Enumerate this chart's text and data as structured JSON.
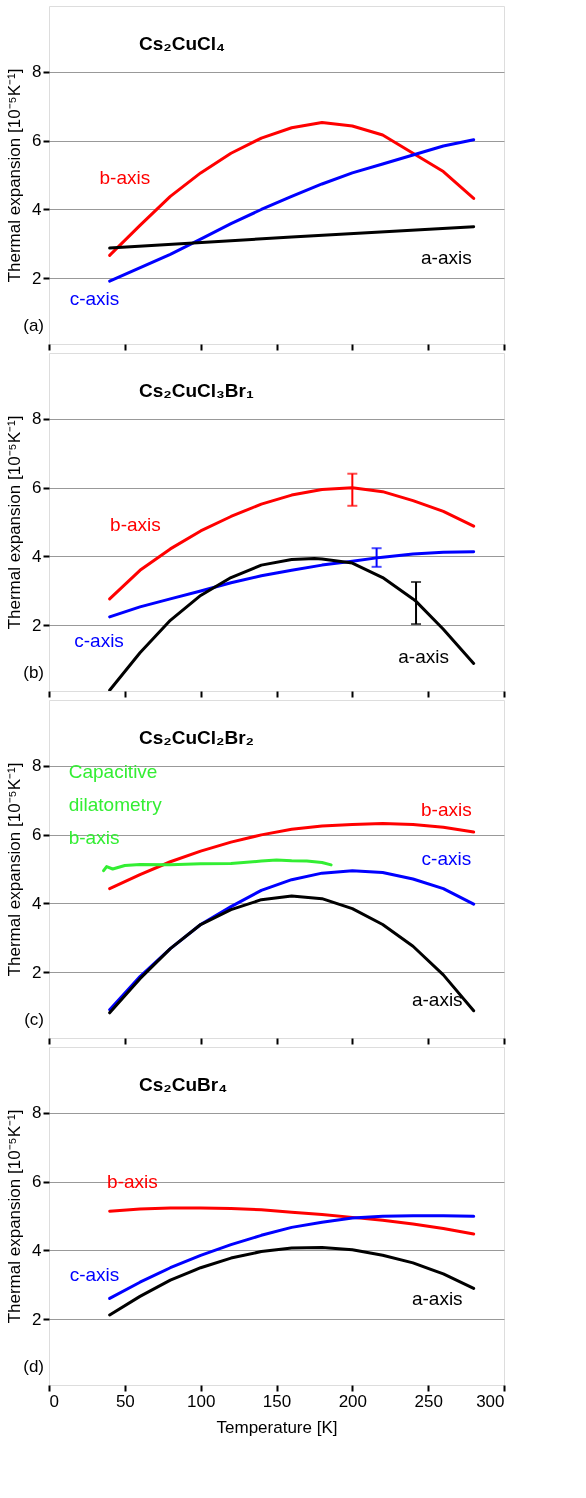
{
  "chart_data": [
    {
      "type": "line",
      "title": "Cs₂CuCl₄",
      "ylabel": "Thermal expansion [10⁻⁵K⁻¹]",
      "xlim": [
        0,
        300
      ],
      "xticks": [
        0,
        50,
        100,
        150,
        200,
        250,
        300
      ],
      "ylim": [
        0.1,
        9.9
      ],
      "yticks": [
        2,
        4,
        6,
        8
      ],
      "grid": "y",
      "tick_labels": "y",
      "line_style": "solid",
      "annotations": [
        "(a)"
      ],
      "series": [
        {
          "name": "b-axis",
          "color": "#ff0000",
          "x": [
            40,
            60,
            80,
            100,
            120,
            140,
            160,
            180,
            200,
            220,
            240,
            260,
            280
          ],
          "values": [
            2.67,
            3.54,
            4.38,
            5.06,
            5.63,
            6.07,
            6.37,
            6.52,
            6.42,
            6.16,
            5.63,
            5.1,
            4.32
          ]
        },
        {
          "name": "c-axis",
          "color": "#0000ff",
          "x": [
            40,
            80,
            100,
            120,
            140,
            160,
            180,
            200,
            220,
            240,
            260,
            280
          ],
          "values": [
            1.92,
            2.7,
            3.14,
            3.59,
            4.0,
            4.38,
            4.74,
            5.06,
            5.32,
            5.58,
            5.84,
            6.02
          ]
        },
        {
          "name": "a-axis",
          "color": "#000000",
          "x": [
            40,
            160,
            280
          ],
          "values": [
            2.88,
            3.2,
            3.5
          ]
        }
      ]
    },
    {
      "type": "line",
      "title": "Cs₂CuCl₃Br₁",
      "ylabel": "Thermal expansion [10⁻⁵K⁻¹]",
      "xlim": [
        0,
        300
      ],
      "xticks": [
        0,
        50,
        100,
        150,
        200,
        250,
        300
      ],
      "ylim": [
        0.1,
        9.9
      ],
      "yticks": [
        2,
        4,
        6,
        8
      ],
      "grid": "y",
      "tick_labels": "y",
      "line_style": "solid",
      "annotations": [
        "(b)"
      ],
      "series": [
        {
          "name": "b-axis",
          "color": "#ff0000",
          "x": [
            40,
            60,
            80,
            100,
            120,
            140,
            160,
            180,
            200,
            220,
            240,
            260,
            280
          ],
          "values": [
            2.77,
            3.6,
            4.22,
            4.74,
            5.16,
            5.52,
            5.78,
            5.94,
            5.99,
            5.88,
            5.62,
            5.31,
            4.88
          ],
          "errors": [
            null,
            null,
            null,
            null,
            null,
            null,
            null,
            null,
            [
              5.47,
              6.4
            ],
            null,
            null,
            null,
            null
          ]
        },
        {
          "name": "c-axis",
          "color": "#0000ff",
          "x": [
            40,
            60,
            80,
            100,
            120,
            140,
            160,
            180,
            200,
            216,
            220,
            240,
            260,
            280
          ],
          "values": [
            2.25,
            2.54,
            2.77,
            3.0,
            3.24,
            3.44,
            3.6,
            3.75,
            3.86,
            3.96,
            3.98,
            4.07,
            4.12,
            4.14
          ],
          "errors": [
            null,
            null,
            null,
            null,
            null,
            null,
            null,
            null,
            null,
            [
              3.7,
              4.24
            ],
            null,
            null,
            null,
            null
          ]
        },
        {
          "name": "a-axis",
          "color": "#000000",
          "x": [
            40,
            60,
            80,
            100,
            120,
            140,
            160,
            175,
            180,
            200,
            220,
            240,
            242,
            260,
            280
          ],
          "values": [
            0.12,
            1.21,
            2.15,
            2.87,
            3.39,
            3.75,
            3.91,
            3.94,
            3.93,
            3.81,
            3.39,
            2.77,
            2.7,
            1.89,
            0.9
          ],
          "errors": [
            null,
            null,
            null,
            null,
            null,
            null,
            null,
            null,
            null,
            null,
            null,
            null,
            [
              2.04,
              3.26
            ],
            null,
            null
          ]
        }
      ]
    },
    {
      "type": "line",
      "title": "Cs₂CuCl₂Br₂",
      "ylabel": "Thermal expansion [10⁻⁵K⁻¹]",
      "xlim": [
        0,
        300
      ],
      "xticks": [
        0,
        50,
        100,
        150,
        200,
        250,
        300
      ],
      "ylim": [
        0.1,
        9.9
      ],
      "yticks": [
        2,
        4,
        6,
        8
      ],
      "grid": "y",
      "tick_labels": "y",
      "line_style": "solid",
      "annotations": [
        "(c)"
      ],
      "series": [
        {
          "name": "b-axis",
          "color": "#ff0000",
          "x": [
            40,
            60,
            80,
            100,
            120,
            140,
            160,
            180,
            200,
            220,
            240,
            260,
            280
          ],
          "values": [
            4.43,
            4.84,
            5.21,
            5.52,
            5.78,
            5.99,
            6.15,
            6.25,
            6.29,
            6.32,
            6.29,
            6.21,
            6.07
          ]
        },
        {
          "name": "c-axis",
          "color": "#0000ff",
          "x": [
            40,
            60,
            80,
            100,
            120,
            140,
            160,
            180,
            200,
            220,
            240,
            260,
            280
          ],
          "values": [
            0.92,
            1.88,
            2.69,
            3.39,
            3.91,
            4.38,
            4.69,
            4.88,
            4.95,
            4.9,
            4.71,
            4.43,
            3.98
          ]
        },
        {
          "name": "a-axis",
          "color": "#000000",
          "x": [
            40,
            60,
            80,
            100,
            120,
            140,
            160,
            180,
            200,
            220,
            240,
            260,
            280
          ],
          "values": [
            0.83,
            1.82,
            2.69,
            3.39,
            3.82,
            4.11,
            4.22,
            4.14,
            3.85,
            3.39,
            2.76,
            1.93,
            0.89
          ]
        },
        {
          "name": "Capacitive dilatometry b-axis",
          "color": "#33ee33",
          "x": [
            36,
            38,
            42,
            50,
            60,
            80,
            100,
            120,
            140,
            150,
            160,
            170,
            180,
            186
          ],
          "values": [
            4.95,
            5.07,
            5.0,
            5.1,
            5.13,
            5.12,
            5.15,
            5.16,
            5.23,
            5.26,
            5.24,
            5.23,
            5.19,
            5.12
          ]
        }
      ]
    },
    {
      "type": "line",
      "title": "Cs₂CuBr₄",
      "xlabel": "Temperature [K]",
      "ylabel": "Thermal expansion [10⁻⁵K⁻¹]",
      "xlim": [
        0,
        300
      ],
      "xticks": [
        0,
        50,
        100,
        150,
        200,
        250,
        300
      ],
      "ylim": [
        0.1,
        9.9
      ],
      "yticks": [
        2,
        4,
        6,
        8
      ],
      "grid": "y",
      "line_style": "solid",
      "annotations": [
        "(d)"
      ],
      "series": [
        {
          "name": "b-axis",
          "color": "#ff0000",
          "x": [
            40,
            60,
            80,
            100,
            120,
            140,
            160,
            180,
            200,
            220,
            240,
            260,
            280
          ],
          "values": [
            5.14,
            5.2,
            5.23,
            5.23,
            5.22,
            5.18,
            5.11,
            5.04,
            4.96,
            4.88,
            4.77,
            4.64,
            4.48
          ]
        },
        {
          "name": "c-axis",
          "color": "#0000ff",
          "x": [
            40,
            60,
            80,
            100,
            120,
            140,
            160,
            180,
            200,
            220,
            240,
            260,
            280
          ],
          "values": [
            2.61,
            3.08,
            3.5,
            3.86,
            4.17,
            4.44,
            4.67,
            4.82,
            4.94,
            4.99,
            5.01,
            5.01,
            4.99
          ]
        },
        {
          "name": "a-axis",
          "color": "#000000",
          "x": [
            40,
            60,
            80,
            100,
            120,
            140,
            160,
            180,
            200,
            220,
            240,
            260,
            280
          ],
          "values": [
            2.13,
            2.67,
            3.14,
            3.5,
            3.78,
            3.97,
            4.07,
            4.09,
            4.02,
            3.86,
            3.64,
            3.32,
            2.9
          ]
        }
      ]
    }
  ]
}
